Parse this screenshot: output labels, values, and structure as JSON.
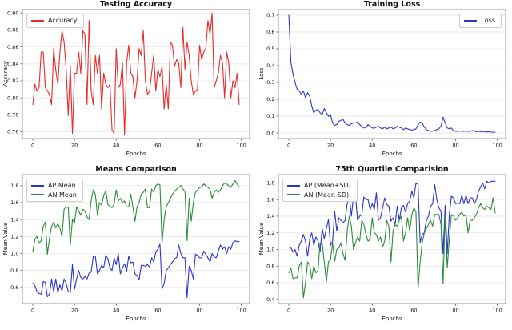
{
  "figure": {
    "background": "#ffffff",
    "grid_color": "#e6e6e6",
    "spine_color": "#8c8c8c",
    "tick_color": "#444444"
  },
  "chart_data": [
    {
      "type": "line",
      "title": "Testing Accuracy",
      "xlabel": "Epochs",
      "ylabel": "Accuracy",
      "legend_position": "upper-left",
      "grid": "horizontal",
      "xlim": [
        -5,
        104
      ],
      "ylim": [
        0.752,
        0.904
      ],
      "xticks": [
        0,
        20,
        40,
        60,
        80,
        100
      ],
      "yticks": [
        0.76,
        0.78,
        0.8,
        0.82,
        0.84,
        0.86,
        0.88,
        0.9
      ],
      "ytick_decimals": 2,
      "x_range": {
        "start": 0,
        "step": 1
      },
      "series": [
        {
          "name": "Accuracy",
          "color": "#e82c2c",
          "values": [
            0.792,
            0.816,
            0.808,
            0.812,
            0.854,
            0.854,
            0.812,
            0.808,
            0.804,
            0.792,
            0.858,
            0.833,
            0.816,
            0.854,
            0.879,
            0.866,
            0.833,
            0.779,
            0.838,
            0.758,
            0.829,
            0.829,
            0.854,
            0.829,
            0.879,
            0.875,
            0.792,
            0.891,
            0.808,
            0.792,
            0.85,
            0.829,
            0.85,
            0.787,
            0.829,
            0.816,
            0.812,
            0.816,
            0.762,
            0.758,
            0.858,
            0.812,
            0.816,
            0.841,
            0.756,
            0.841,
            0.862,
            0.829,
            0.825,
            0.8,
            0.82,
            0.858,
            0.85,
            0.879,
            0.82,
            0.804,
            0.808,
            0.829,
            0.85,
            0.808,
            0.833,
            0.825,
            0.837,
            0.787,
            0.816,
            0.787,
            0.866,
            0.862,
            0.837,
            0.845,
            0.841,
            0.812,
            0.883,
            0.833,
            0.866,
            0.85,
            0.82,
            0.804,
            0.808,
            0.81,
            0.862,
            0.845,
            0.854,
            0.858,
            0.891,
            0.875,
            0.9,
            0.812,
            0.82,
            0.829,
            0.85,
            0.841,
            0.8,
            0.854,
            0.841,
            0.8,
            0.82,
            0.812,
            0.829,
            0.792
          ]
        }
      ]
    },
    {
      "type": "line",
      "title": "Training Loss",
      "xlabel": "Epochs",
      "ylabel": "Loss",
      "legend_position": "upper-right",
      "grid": "horizontal",
      "xlim": [
        -5,
        104
      ],
      "ylim": [
        -0.033,
        0.733
      ],
      "xticks": [
        0,
        20,
        40,
        60,
        80,
        100
      ],
      "yticks": [
        0.0,
        0.1,
        0.2,
        0.3,
        0.4,
        0.5,
        0.6,
        0.7
      ],
      "ytick_decimals": 1,
      "x_range": {
        "start": 0,
        "step": 1
      },
      "series": [
        {
          "name": "Loss",
          "color": "#2d35cc",
          "values": [
            0.7,
            0.42,
            0.35,
            0.3,
            0.26,
            0.25,
            0.23,
            0.25,
            0.21,
            0.24,
            0.22,
            0.16,
            0.12,
            0.135,
            0.14,
            0.12,
            0.11,
            0.145,
            0.12,
            0.1,
            0.11,
            0.06,
            0.045,
            0.05,
            0.07,
            0.075,
            0.08,
            0.06,
            0.05,
            0.045,
            0.055,
            0.06,
            0.06,
            0.065,
            0.05,
            0.04,
            0.03,
            0.03,
            0.05,
            0.04,
            0.03,
            0.028,
            0.035,
            0.04,
            0.03,
            0.025,
            0.035,
            0.025,
            0.03,
            0.035,
            0.025,
            0.03,
            0.04,
            0.035,
            0.03,
            0.02,
            0.03,
            0.025,
            0.02,
            0.018,
            0.02,
            0.025,
            0.05,
            0.065,
            0.06,
            0.035,
            0.02,
            0.015,
            0.01,
            0.012,
            0.015,
            0.02,
            0.025,
            0.04,
            0.095,
            0.06,
            0.03,
            0.025,
            0.03,
            0.012,
            0.01,
            0.01,
            0.012,
            0.01,
            0.01,
            0.012,
            0.01,
            0.01,
            0.015,
            0.01,
            0.008,
            0.01,
            0.008,
            0.008,
            0.008,
            0.006,
            0.008,
            0.005,
            0.005,
            0.005
          ]
        }
      ]
    },
    {
      "type": "line",
      "title": "Means Comparison",
      "xlabel": "Epochs",
      "ylabel": "Mean Value",
      "legend_position": "upper-left",
      "grid": "horizontal",
      "xlim": [
        -5,
        104
      ],
      "ylim": [
        0.41,
        1.93
      ],
      "xticks": [
        0,
        20,
        40,
        60,
        80,
        100
      ],
      "yticks": [
        0.6,
        0.8,
        1.0,
        1.2,
        1.4,
        1.6,
        1.8
      ],
      "ytick_decimals": 1,
      "x_range": {
        "start": 0,
        "step": 1
      },
      "series": [
        {
          "name": "AP Mean",
          "color": "#2d35cc",
          "values": [
            0.65,
            0.62,
            0.55,
            0.53,
            0.52,
            0.67,
            0.66,
            0.49,
            0.52,
            0.7,
            0.55,
            0.7,
            0.54,
            0.63,
            0.56,
            0.7,
            0.65,
            0.55,
            0.54,
            0.87,
            0.58,
            0.7,
            0.8,
            0.72,
            0.7,
            0.73,
            0.7,
            0.77,
            0.78,
            0.97,
            0.97,
            0.76,
            0.8,
            0.86,
            0.83,
            0.98,
            0.94,
            0.83,
            0.8,
            0.95,
            0.87,
            1.0,
            0.76,
            0.83,
            0.88,
            0.79,
            0.97,
            0.89,
            0.9,
            0.76,
            0.74,
            0.69,
            0.86,
            0.86,
            0.85,
            0.87,
            0.84,
            0.95,
            0.9,
            1.02,
            1.05,
            1.11,
            0.58,
            0.65,
            0.8,
            0.83,
            0.87,
            0.9,
            0.94,
            0.95,
            1.1,
            1.0,
            0.95,
            0.95,
            0.48,
            0.85,
            0.8,
            0.7,
            0.99,
            0.98,
            0.95,
            0.95,
            1.03,
            0.99,
            0.95,
            0.9,
            1.0,
            0.96,
            0.95,
            1.03,
            1.1,
            1.05,
            1.08,
            1.0,
            1.08,
            1.05,
            1.13,
            1.15,
            1.14,
            1.14
          ]
        },
        {
          "name": "AN Mean",
          "color": "#2e8b3d",
          "values": [
            1.02,
            1.17,
            1.2,
            1.12,
            1.15,
            1.32,
            1.37,
            0.99,
            1.18,
            1.32,
            1.37,
            1.3,
            1.35,
            1.3,
            1.2,
            1.52,
            1.55,
            1.54,
            1.1,
            1.4,
            1.36,
            1.55,
            1.5,
            1.45,
            1.52,
            1.5,
            1.43,
            1.4,
            1.63,
            1.75,
            1.7,
            1.45,
            1.6,
            1.57,
            1.68,
            1.74,
            1.58,
            1.55,
            1.54,
            1.58,
            1.75,
            1.62,
            1.65,
            1.6,
            1.62,
            1.55,
            1.55,
            1.7,
            1.55,
            1.38,
            1.55,
            1.6,
            1.7,
            1.72,
            1.76,
            1.54,
            1.54,
            1.76,
            1.72,
            1.8,
            1.82,
            1.81,
            1.12,
            1.4,
            1.55,
            1.6,
            1.65,
            1.7,
            1.73,
            1.76,
            1.78,
            1.8,
            1.76,
            1.73,
            1.15,
            1.65,
            1.38,
            1.6,
            1.72,
            1.75,
            1.78,
            1.78,
            1.82,
            1.8,
            1.78,
            1.76,
            1.65,
            1.72,
            1.75,
            1.72,
            1.75,
            1.8,
            1.83,
            1.82,
            1.8,
            1.78,
            1.82,
            1.86,
            1.82,
            1.78
          ]
        }
      ]
    },
    {
      "type": "line",
      "title": "75th Quartile Comparision",
      "xlabel": "Epochs",
      "ylabel": "Mean Value",
      "legend_position": "upper-left",
      "grid": "horizontal",
      "xlim": [
        -5,
        104
      ],
      "ylim": [
        0.35,
        1.9
      ],
      "xticks": [
        0,
        20,
        40,
        60,
        80,
        100
      ],
      "yticks": [
        0.4,
        0.6,
        0.8,
        1.0,
        1.2,
        1.4,
        1.6,
        1.8
      ],
      "ytick_decimals": 1,
      "x_range": {
        "start": 0,
        "step": 1
      },
      "series": [
        {
          "name": "AP (Mean+SD)",
          "color": "#2d35cc",
          "values": [
            1.03,
            1.02,
            0.97,
            1.0,
            0.92,
            1.05,
            1.1,
            1.18,
            1.1,
            0.92,
            1.12,
            1.2,
            1.05,
            1.15,
            1.1,
            0.97,
            1.25,
            1.13,
            1.25,
            1.36,
            1.05,
            1.1,
            1.46,
            1.22,
            1.38,
            1.35,
            1.32,
            1.35,
            1.55,
            1.65,
            1.4,
            1.63,
            1.65,
            1.35,
            1.4,
            1.42,
            1.63,
            1.6,
            1.6,
            1.48,
            1.55,
            1.48,
            1.68,
            1.35,
            1.38,
            1.5,
            1.62,
            1.54,
            1.52,
            1.34,
            1.38,
            1.3,
            1.52,
            1.35,
            1.5,
            1.53,
            1.45,
            1.55,
            1.58,
            1.7,
            1.62,
            1.8,
            1.78,
            1.08,
            1.18,
            1.2,
            1.35,
            1.4,
            1.52,
            1.55,
            1.78,
            1.6,
            1.5,
            1.46,
            0.95,
            1.53,
            0.95,
            1.42,
            1.64,
            1.62,
            1.55,
            1.56,
            1.55,
            1.65,
            1.55,
            1.65,
            1.55,
            1.62,
            1.62,
            1.55,
            1.6,
            1.7,
            1.75,
            1.8,
            1.73,
            1.82,
            1.8,
            1.82,
            1.82,
            1.82
          ]
        },
        {
          "name": "AN (Mean-SD)",
          "color": "#2e8b3d",
          "values": [
            0.72,
            0.78,
            0.65,
            0.66,
            0.66,
            0.8,
            0.85,
            0.42,
            0.6,
            0.85,
            0.82,
            0.65,
            0.8,
            0.72,
            0.75,
            1.08,
            1.08,
            0.85,
            0.61,
            0.85,
            0.88,
            1.08,
            0.86,
            1.0,
            1.02,
            1.08,
            0.95,
            0.87,
            1.22,
            1.4,
            1.28,
            1.0,
            1.08,
            1.15,
            1.1,
            1.35,
            1.3,
            1.18,
            1.1,
            1.12,
            1.38,
            1.2,
            1.18,
            1.1,
            1.15,
            1.03,
            1.1,
            1.35,
            1.28,
            0.85,
            1.22,
            1.3,
            1.28,
            1.35,
            1.4,
            1.1,
            1.2,
            1.38,
            1.22,
            1.42,
            1.5,
            1.45,
            0.53,
            0.85,
            1.08,
            1.2,
            1.25,
            1.3,
            1.35,
            1.28,
            1.42,
            1.42,
            1.42,
            1.3,
            0.59,
            1.4,
            0.78,
            1.12,
            1.42,
            1.4,
            1.35,
            1.38,
            1.42,
            1.45,
            1.4,
            1.42,
            1.2,
            1.35,
            1.35,
            1.38,
            1.42,
            1.5,
            1.55,
            1.5,
            1.48,
            1.52,
            1.5,
            1.48,
            1.62,
            1.44
          ]
        }
      ]
    }
  ]
}
